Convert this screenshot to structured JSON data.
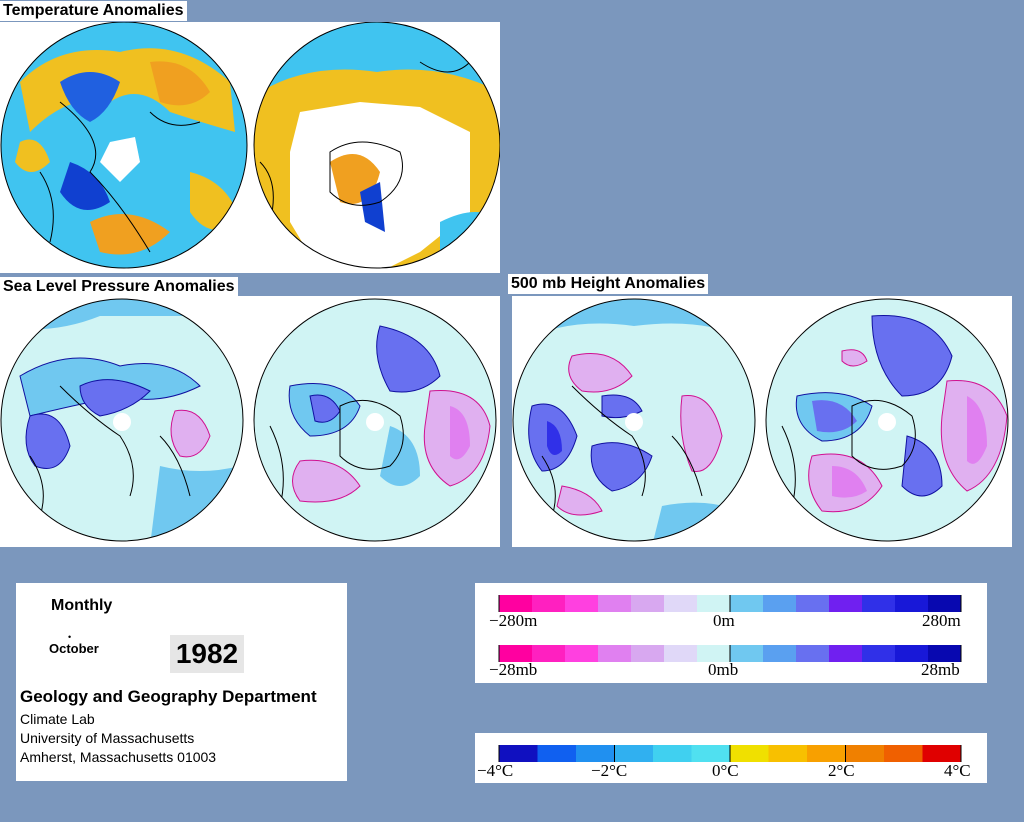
{
  "sections": {
    "temperature_title": "Temperature Anomalies",
    "slp_title": "Sea Level Pressure Anomalies",
    "height_title": "500 mb Height Anomalies"
  },
  "info": {
    "period": "Monthly",
    "month": "October",
    "year": "1982",
    "department": "Geology and Geography Department",
    "lab": "Climate Lab",
    "university": "University of Massachusetts",
    "address": "Amherst, Massachusetts 01003"
  },
  "legends": {
    "height": {
      "labels": [
        "−280m",
        "0m",
        "280m"
      ]
    },
    "pressure": {
      "labels": [
        "−28mb",
        "0mb",
        "28mb"
      ]
    },
    "temperature": {
      "labels": [
        "−4°C",
        "−2°C",
        "0°C",
        "2°C",
        "4°C"
      ]
    }
  },
  "colors": {
    "background": "#7b97bd",
    "anomaly_scale": [
      "#ff00a0",
      "#ff20c0",
      "#ff40e0",
      "#e080f0",
      "#d8a8f0",
      "#e0d8f8",
      "#d0f4f4",
      "#70c8f0",
      "#5aa0f0",
      "#6870f0",
      "#7020f0",
      "#3030e8",
      "#1818d8",
      "#0808b0"
    ],
    "temperature_scale": [
      "#1010c0",
      "#1060f0",
      "#2090f0",
      "#30b0f0",
      "#40d0f0",
      "#50e0f0",
      "#f0e000",
      "#f8c000",
      "#f8a000",
      "#f08000",
      "#f06000",
      "#e00000"
    ]
  }
}
